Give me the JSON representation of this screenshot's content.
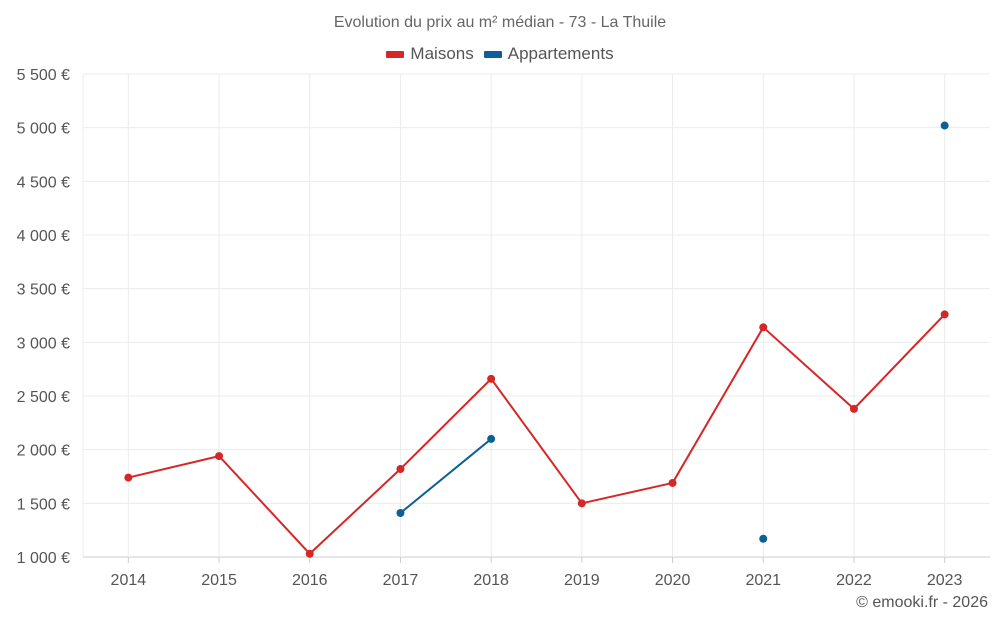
{
  "chart_data": {
    "type": "line",
    "title": "Evolution du prix au m² médian - 73 - La Thuile",
    "xlabel": "",
    "ylabel": "",
    "categories": [
      "2014",
      "2015",
      "2016",
      "2017",
      "2018",
      "2019",
      "2020",
      "2021",
      "2022",
      "2023"
    ],
    "ylim": [
      1000,
      5500
    ],
    "yticks": [
      1000,
      1500,
      2000,
      2500,
      3000,
      3500,
      4000,
      4500,
      5000,
      5500
    ],
    "ytick_labels": [
      "1 000 €",
      "1 500 €",
      "2 000 €",
      "2 500 €",
      "3 000 €",
      "3 500 €",
      "4 000 €",
      "4 500 €",
      "5 000 €",
      "5 500 €"
    ],
    "grid": true,
    "legend_position": "top-center",
    "series": [
      {
        "name": "Maisons",
        "color": "#d62728",
        "values": [
          1740,
          1940,
          1030,
          1820,
          2660,
          1500,
          1690,
          3140,
          2380,
          3260
        ]
      },
      {
        "name": "Appartements",
        "color": "#0f5f97",
        "values": [
          null,
          null,
          null,
          1410,
          2100,
          null,
          null,
          1170,
          null,
          5020
        ]
      }
    ]
  },
  "credit": "© emooki.fr - 2026"
}
